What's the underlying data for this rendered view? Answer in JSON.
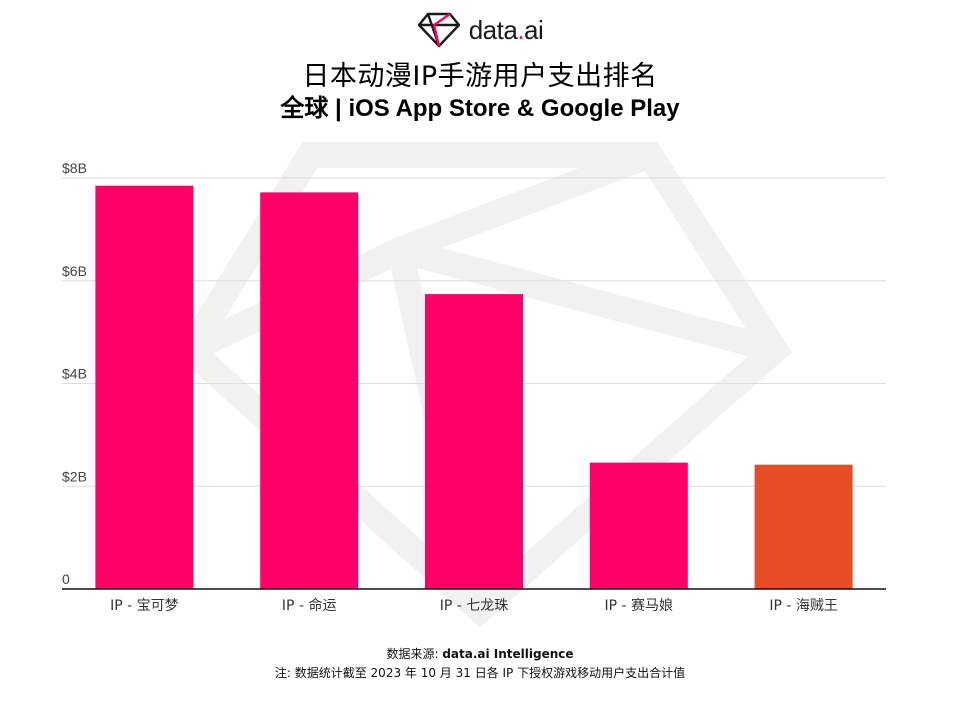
{
  "brand": {
    "name_prefix": "data",
    "name_dot": ".",
    "name_suffix": "ai",
    "accent_color": "#ff0066"
  },
  "title": "日本动漫IP手游用户支出排名",
  "subtitle": "全球 | iOS App Store & Google Play",
  "footer": {
    "source_label": "数据来源: ",
    "source_value": "data.ai Intelligence",
    "note": "注: 数据统计截至 2023 年 10 月 31 日各 IP 下授权游戏移动用户支出合计值"
  },
  "chart_data": {
    "type": "bar",
    "title": "日本动漫IP手游用户支出排名",
    "subtitle": "全球 | iOS App Store & Google Play",
    "categories": [
      "IP - 宝可梦",
      "IP - 命运",
      "IP - 七龙珠",
      "IP - 赛马娘",
      "IP - 海贼王"
    ],
    "values": [
      7.85,
      7.72,
      5.74,
      2.46,
      2.42
    ],
    "unit": "B USD",
    "ylim": [
      0,
      8
    ],
    "yticks": [
      0,
      2,
      4,
      6,
      8
    ],
    "ytick_labels": [
      "0",
      "$2B",
      "$4B",
      "$6B",
      "$8B"
    ],
    "bar_colors": [
      "#ff0066",
      "#ff0066",
      "#ff0066",
      "#ff0066",
      "#e44d26"
    ],
    "grid": true,
    "legend": "none"
  }
}
